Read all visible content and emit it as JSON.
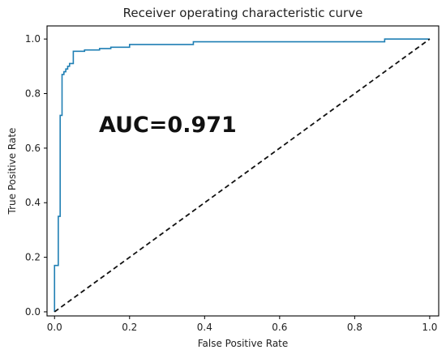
{
  "chart_data": {
    "type": "line",
    "title": "Receiver operating characteristic curve",
    "xlabel": "False Positive Rate",
    "ylabel": "True Positive Rate",
    "xlim": [
      0.0,
      1.0
    ],
    "ylim": [
      0.0,
      1.0
    ],
    "x_ticks": [
      0.0,
      0.2,
      0.4,
      0.6,
      0.8,
      1.0
    ],
    "y_ticks": [
      0.0,
      0.2,
      0.4,
      0.6,
      0.8,
      1.0
    ],
    "x_tick_labels": [
      "0.0",
      "0.2",
      "0.4",
      "0.6",
      "0.8",
      "1.0"
    ],
    "y_tick_labels": [
      "0.0",
      "0.2",
      "0.4",
      "0.6",
      "0.8",
      "1.0"
    ],
    "grid": false,
    "annotation": "AUC=0.971",
    "series": [
      {
        "color": "#1f7fb4",
        "style": "solid",
        "x": [
          0.0,
          0.0,
          0.01,
          0.01,
          0.015,
          0.015,
          0.02,
          0.02,
          0.025,
          0.025,
          0.03,
          0.03,
          0.035,
          0.035,
          0.04,
          0.04,
          0.05,
          0.05,
          0.08,
          0.08,
          0.12,
          0.12,
          0.15,
          0.15,
          0.2,
          0.2,
          0.37,
          0.37,
          0.88,
          0.88,
          1.0
        ],
        "y": [
          0.0,
          0.17,
          0.17,
          0.35,
          0.35,
          0.72,
          0.72,
          0.87,
          0.87,
          0.88,
          0.88,
          0.89,
          0.89,
          0.9,
          0.9,
          0.91,
          0.91,
          0.955,
          0.955,
          0.96,
          0.96,
          0.965,
          0.965,
          0.97,
          0.97,
          0.98,
          0.98,
          0.99,
          0.99,
          1.0,
          1.0
        ]
      },
      {
        "color": "#111111",
        "style": "dashed",
        "x": [
          0.0,
          1.0
        ],
        "y": [
          0.0,
          1.0
        ]
      }
    ]
  }
}
